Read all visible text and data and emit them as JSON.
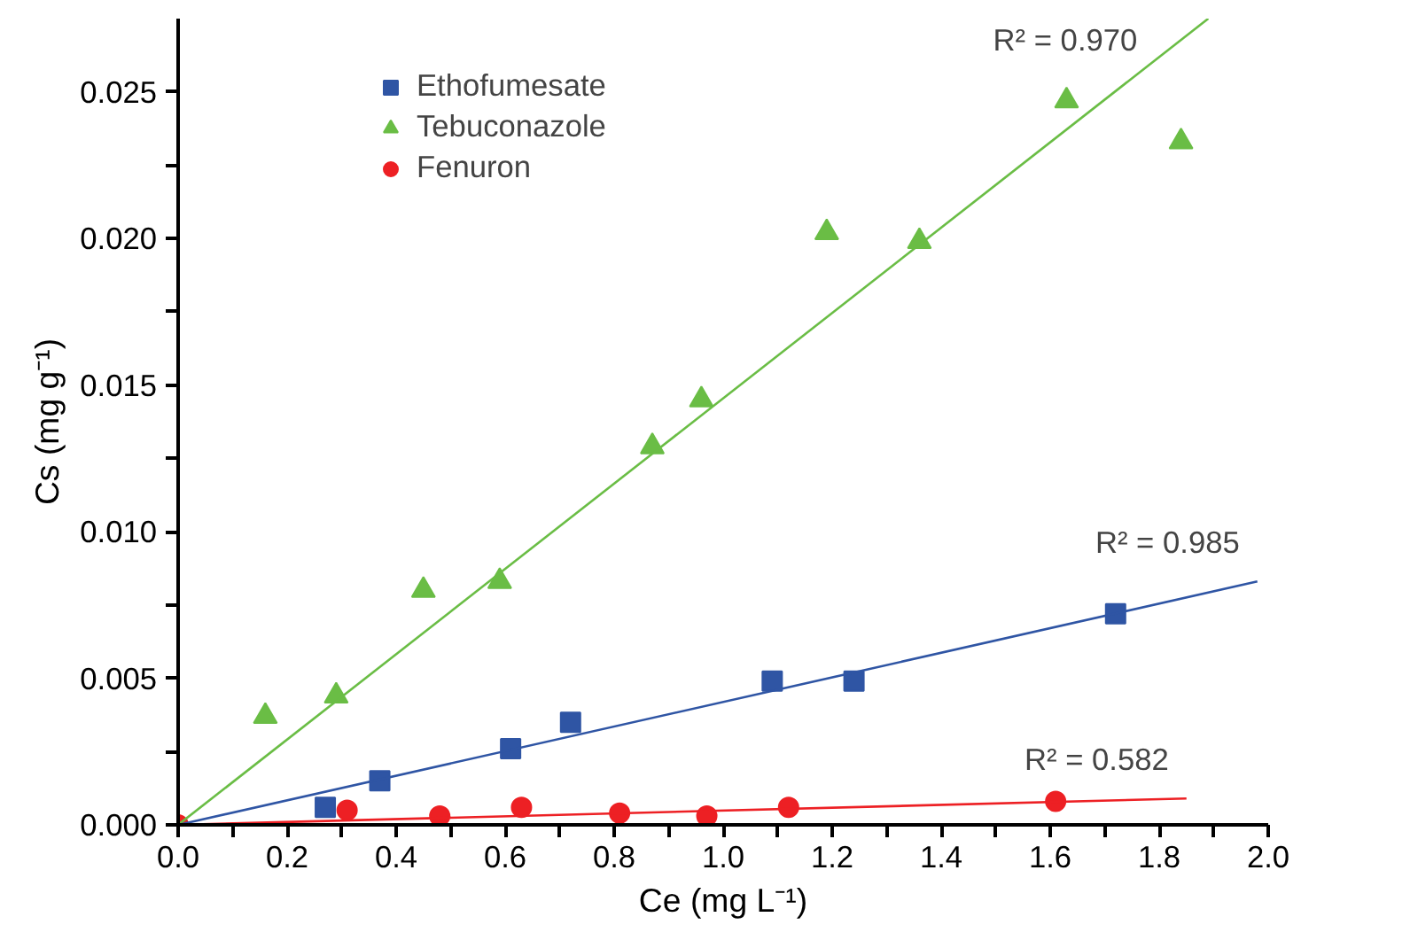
{
  "chart_data": {
    "type": "scatter",
    "xlabel": "Ce (mg L⁻¹)",
    "ylabel": "Cs (mg g⁻¹)",
    "xlim": [
      0,
      2.0
    ],
    "ylim": [
      0,
      0.0275
    ],
    "xticks": [
      {
        "value": 0,
        "label": "0.0"
      },
      {
        "value": 0.1,
        "label": null
      },
      {
        "value": 0.2,
        "label": "0.2"
      },
      {
        "value": 0.3,
        "label": null
      },
      {
        "value": 0.4,
        "label": "0.4"
      },
      {
        "value": 0.5,
        "label": null
      },
      {
        "value": 0.6,
        "label": "0.6"
      },
      {
        "value": 0.7,
        "label": null
      },
      {
        "value": 0.8,
        "label": "0.8"
      },
      {
        "value": 0.9,
        "label": null
      },
      {
        "value": 1.0,
        "label": "1.0"
      },
      {
        "value": 1.1,
        "label": null
      },
      {
        "value": 1.2,
        "label": "1.2"
      },
      {
        "value": 1.3,
        "label": null
      },
      {
        "value": 1.4,
        "label": "1.4"
      },
      {
        "value": 1.5,
        "label": null
      },
      {
        "value": 1.6,
        "label": "1.6"
      },
      {
        "value": 1.7,
        "label": null
      },
      {
        "value": 1.8,
        "label": "1.8"
      },
      {
        "value": 1.9,
        "label": null
      },
      {
        "value": 2.0,
        "label": "2.0"
      }
    ],
    "yticks": [
      {
        "value": 0,
        "label": "0.000"
      },
      {
        "value": 0.0025,
        "label": null
      },
      {
        "value": 0.005,
        "label": "0.005"
      },
      {
        "value": 0.0075,
        "label": null
      },
      {
        "value": 0.01,
        "label": "0.010"
      },
      {
        "value": 0.0125,
        "label": null
      },
      {
        "value": 0.015,
        "label": "0.015"
      },
      {
        "value": 0.0175,
        "label": null
      },
      {
        "value": 0.02,
        "label": "0.020"
      },
      {
        "value": 0.0225,
        "label": null
      },
      {
        "value": 0.025,
        "label": "0.025"
      }
    ],
    "grid": false,
    "legend": "top left",
    "series": [
      {
        "name": "Ethofumesate",
        "color": "#2f55a4",
        "marker": "square",
        "x": [
          0.27,
          0.37,
          0.61,
          0.72,
          1.09,
          1.24,
          1.72
        ],
        "values": [
          0.0006,
          0.0015,
          0.0026,
          0.0035,
          0.0049,
          0.0049,
          0.0072
        ]
      },
      {
        "name": "Tebuconazole",
        "color": "#6abd45",
        "marker": "triangle",
        "x": [
          0.16,
          0.29,
          0.45,
          0.59,
          0.87,
          0.96,
          1.19,
          1.36,
          1.63,
          1.84
        ],
        "values": [
          0.0037,
          0.0044,
          0.008,
          0.0083,
          0.0129,
          0.0145,
          0.0202,
          0.0199,
          0.0247,
          0.0233
        ]
      },
      {
        "name": "Fenuron",
        "color": "#ed2024",
        "marker": "circle",
        "x": [
          0,
          0.31,
          0.48,
          0.63,
          0.81,
          0.97,
          1.12,
          1.61
        ],
        "values": [
          0,
          0.0005,
          0.0003,
          0.0006,
          0.0004,
          0.0003,
          0.0006,
          0.0008
        ]
      },
      {
        "type": "line",
        "color": "#6abd45",
        "x": [
          0,
          1.89
        ],
        "values": [
          0,
          0.0275
        ]
      },
      {
        "type": "line",
        "color": "#2f55a4",
        "x": [
          0,
          1.98
        ],
        "values": [
          0,
          0.0083
        ]
      },
      {
        "type": "line",
        "color": "#ed2024",
        "x": [
          0,
          1.85
        ],
        "values": [
          0,
          0.0009
        ]
      }
    ],
    "annotations": [
      "R² = 0.970",
      "R² = 0.985",
      "R² = 0.582"
    ]
  }
}
